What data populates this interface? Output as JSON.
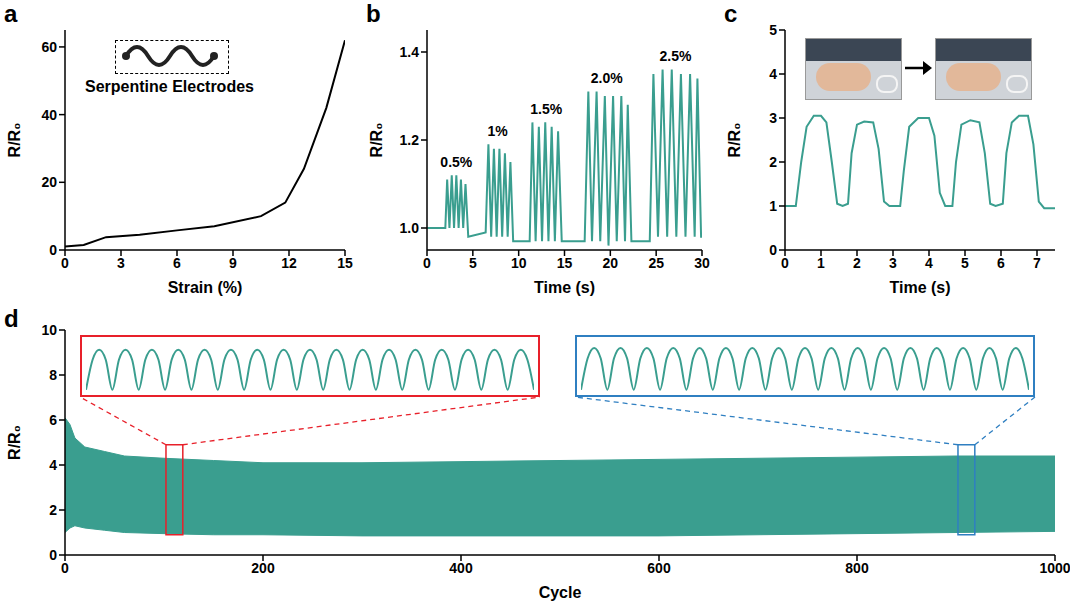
{
  "chart_data": [
    {
      "panel": "a",
      "type": "line",
      "x_label": "Strain (%)",
      "y_label": "R/R₀",
      "annotation": "Serpentine Electrodes",
      "color": "#000000",
      "x": [
        0,
        1,
        2.2,
        4,
        6,
        8,
        10.5,
        11.8,
        12.8,
        14,
        15
      ],
      "values": [
        1,
        1.5,
        3.8,
        4.5,
        5.8,
        7,
        10,
        14,
        24,
        42,
        62
      ],
      "xlim": [
        0,
        15
      ],
      "xticks": [
        0,
        3,
        6,
        9,
        12,
        15
      ],
      "ylim": [
        0,
        65
      ],
      "yticks": [
        0,
        20,
        40,
        60
      ]
    },
    {
      "panel": "b",
      "type": "line",
      "x_label": "Time (s)",
      "y_label": "R/R₀",
      "color": "#3a9e8f",
      "x": [
        0,
        2.0,
        2.2,
        2.45,
        2.7,
        2.95,
        3.2,
        3.45,
        3.7,
        3.95,
        4.2,
        4.5,
        6.4,
        6.7,
        7.0,
        7.3,
        7.6,
        7.9,
        8.2,
        8.5,
        8.8,
        9.1,
        9.4,
        11.2,
        11.5,
        11.85,
        12.2,
        12.55,
        12.9,
        13.25,
        13.6,
        13.95,
        14.3,
        14.7,
        17.2,
        17.6,
        18.0,
        18.5,
        18.9,
        19.4,
        19.8,
        20.3,
        20.7,
        21.2,
        21.6,
        21.9,
        22.3,
        24.3,
        24.7,
        25.2,
        25.7,
        26.2,
        26.7,
        27.2,
        27.7,
        28.2,
        28.7,
        29.2,
        29.5,
        29.9,
        30
      ],
      "values": [
        1.0,
        1.0,
        1.11,
        1.0,
        1.12,
        1.0,
        1.12,
        1.0,
        1.11,
        1.0,
        1.1,
        0.98,
        0.99,
        1.19,
        0.98,
        1.18,
        0.98,
        1.18,
        0.98,
        1.17,
        0.98,
        1.15,
        0.97,
        0.97,
        1.24,
        0.97,
        1.23,
        0.97,
        1.24,
        0.97,
        1.23,
        0.97,
        1.22,
        0.97,
        0.97,
        1.31,
        0.97,
        1.31,
        0.97,
        1.3,
        0.96,
        1.3,
        0.97,
        1.3,
        0.97,
        1.28,
        0.97,
        0.97,
        1.35,
        0.98,
        1.36,
        0.98,
        1.36,
        0.98,
        1.35,
        0.98,
        1.35,
        0.98,
        1.34,
        0.98,
        0.98
      ],
      "annotations": [
        {
          "text": "0.5%",
          "x": 3.2,
          "y": 1.15
        },
        {
          "text": "1%",
          "x": 7.7,
          "y": 1.22
        },
        {
          "text": "1.5%",
          "x": 13,
          "y": 1.27
        },
        {
          "text": "2.0%",
          "x": 19.6,
          "y": 1.34
        },
        {
          "text": "2.5%",
          "x": 27.1,
          "y": 1.39
        }
      ],
      "xlim": [
        0,
        30
      ],
      "xticks": [
        0,
        5,
        10,
        15,
        20,
        25,
        30
      ],
      "ylim": [
        0.95,
        1.45
      ],
      "yticks": [
        {
          "value": 1.0,
          "label": "1.0"
        },
        {
          "value": 1.2,
          "label": "1.2"
        },
        {
          "value": 1.4,
          "label": "1.4"
        }
      ]
    },
    {
      "panel": "c",
      "type": "line",
      "x_label": "Time (s)",
      "y_label": "R/R₀",
      "color": "#3a9e8f",
      "x": [
        0,
        0.3,
        0.45,
        0.6,
        0.8,
        1.0,
        1.15,
        1.3,
        1.45,
        1.6,
        1.75,
        1.85,
        2.0,
        2.2,
        2.45,
        2.6,
        2.75,
        2.9,
        3.2,
        3.3,
        3.45,
        3.7,
        4.0,
        4.15,
        4.3,
        4.45,
        4.65,
        4.75,
        4.9,
        5.15,
        5.4,
        5.55,
        5.7,
        5.85,
        6.05,
        6.15,
        6.3,
        6.5,
        6.75,
        6.9,
        7.05,
        7.2,
        7.5
      ],
      "values": [
        1.0,
        1.0,
        2.0,
        2.8,
        3.05,
        3.05,
        2.9,
        2.0,
        1.05,
        1.0,
        1.05,
        2.2,
        2.85,
        2.92,
        2.9,
        2.3,
        1.1,
        1.0,
        1.0,
        1.8,
        2.8,
        3.0,
        3.0,
        2.6,
        1.3,
        1.0,
        1.0,
        2.0,
        2.85,
        2.95,
        2.9,
        2.2,
        1.05,
        1.0,
        1.05,
        2.2,
        2.9,
        3.05,
        3.05,
        2.4,
        1.1,
        0.95,
        0.95
      ],
      "xlim": [
        0,
        7.5
      ],
      "xticks": [
        0,
        1,
        2,
        3,
        4,
        5,
        6,
        7
      ],
      "ylim": [
        0,
        5
      ],
      "yticks": [
        0,
        1,
        2,
        3,
        4,
        5
      ]
    },
    {
      "panel": "d",
      "type": "area",
      "x_label": "Cycle",
      "y_label": "R/R₀",
      "color": "#3a9e8f",
      "x": [
        0,
        5,
        10,
        20,
        40,
        60,
        100,
        150,
        200,
        300,
        400,
        500,
        600,
        700,
        800,
        900,
        1000
      ],
      "values": [
        [
          1.0,
          6.1
        ],
        [
          1.2,
          5.8
        ],
        [
          1.3,
          5.2
        ],
        [
          1.2,
          4.8
        ],
        [
          1.1,
          4.6
        ],
        [
          1.0,
          4.4
        ],
        [
          0.95,
          4.3
        ],
        [
          0.9,
          4.2
        ],
        [
          0.9,
          4.1
        ],
        [
          0.85,
          4.1
        ],
        [
          0.85,
          4.15
        ],
        [
          0.85,
          4.2
        ],
        [
          0.85,
          4.25
        ],
        [
          0.9,
          4.3
        ],
        [
          0.95,
          4.35
        ],
        [
          1.0,
          4.4
        ],
        [
          1.05,
          4.4
        ]
      ],
      "xlim": [
        0,
        1000
      ],
      "xticks": [
        0,
        200,
        400,
        600,
        800,
        1000
      ],
      "ylim": [
        0,
        10
      ],
      "yticks": [
        0,
        2,
        4,
        6,
        8,
        10
      ],
      "insets": [
        {
          "color": "#e8202a",
          "xlim": [
            102,
            119
          ],
          "ylim": [
            0.9,
            4.9
          ],
          "x": [
            102,
            102.25,
            102.5,
            102.75,
            103,
            103.25,
            103.5,
            103.75,
            104,
            104.25,
            104.5,
            104.75,
            105,
            105.25,
            105.5,
            105.75,
            106,
            106.25,
            106.5,
            106.75,
            107,
            107.25,
            107.5,
            107.75,
            108,
            108.25,
            108.5,
            108.75,
            109,
            109.25,
            109.5,
            109.75,
            110,
            110.25,
            110.5,
            110.75,
            111,
            111.25,
            111.5,
            111.75,
            112,
            112.25,
            112.5,
            112.75,
            113,
            113.25,
            113.5,
            113.75,
            114,
            114.25,
            114.5,
            114.75,
            115,
            115.25,
            115.5,
            115.75,
            116,
            116.25,
            116.5,
            116.75,
            117,
            117.25,
            117.5,
            117.75,
            118,
            118.25,
            118.5,
            118.75,
            119
          ],
          "values": [
            1.0,
            3.4,
            4.2,
            3.4,
            1.0,
            3.4,
            4.2,
            3.4,
            1.0,
            3.4,
            4.2,
            3.4,
            1.0,
            3.4,
            4.2,
            3.4,
            1.0,
            3.4,
            4.2,
            3.4,
            1.0,
            3.4,
            4.2,
            3.4,
            1.0,
            3.4,
            4.2,
            3.4,
            1.0,
            3.4,
            4.2,
            3.4,
            1.0,
            3.4,
            4.2,
            3.4,
            1.0,
            3.4,
            4.2,
            3.4,
            1.0,
            3.4,
            4.2,
            3.4,
            1.0,
            3.4,
            4.2,
            3.4,
            1.0,
            3.4,
            4.2,
            3.4,
            1.0,
            3.4,
            4.2,
            3.4,
            1.0,
            3.4,
            4.2,
            3.4,
            1.0,
            3.4,
            4.2,
            3.4,
            1.0,
            3.4,
            4.2,
            3.4,
            1.0
          ]
        },
        {
          "color": "#2f7fc1",
          "xlim": [
            902,
            919
          ],
          "ylim": [
            0.9,
            4.9
          ],
          "x": [
            902,
            902.25,
            902.5,
            902.75,
            903,
            903.25,
            903.5,
            903.75,
            904,
            904.25,
            904.5,
            904.75,
            905,
            905.25,
            905.5,
            905.75,
            906,
            906.25,
            906.5,
            906.75,
            907,
            907.25,
            907.5,
            907.75,
            908,
            908.25,
            908.5,
            908.75,
            909,
            909.25,
            909.5,
            909.75,
            910,
            910.25,
            910.5,
            910.75,
            911,
            911.25,
            911.5,
            911.75,
            912,
            912.25,
            912.5,
            912.75,
            913,
            913.25,
            913.5,
            913.75,
            914,
            914.25,
            914.5,
            914.75,
            915,
            915.25,
            915.5,
            915.75,
            916,
            916.25,
            916.5,
            916.75,
            917,
            917.25,
            917.5,
            917.75,
            918,
            918.25,
            918.5,
            918.75,
            919
          ],
          "values": [
            1.0,
            3.5,
            4.35,
            3.5,
            1.0,
            3.5,
            4.35,
            3.5,
            1.0,
            3.5,
            4.35,
            3.5,
            1.0,
            3.5,
            4.35,
            3.5,
            1.0,
            3.5,
            4.35,
            3.5,
            1.0,
            3.5,
            4.35,
            3.5,
            1.0,
            3.5,
            4.35,
            3.5,
            1.0,
            3.5,
            4.35,
            3.5,
            1.0,
            3.5,
            4.35,
            3.5,
            1.0,
            3.5,
            4.35,
            3.5,
            1.0,
            3.5,
            4.35,
            3.5,
            1.0,
            3.5,
            4.35,
            3.5,
            1.0,
            3.5,
            4.35,
            3.5,
            1.0,
            3.5,
            4.35,
            3.5,
            1.0,
            3.5,
            4.35,
            3.5,
            1.0,
            3.5,
            4.35,
            3.5,
            1.0,
            3.5,
            4.35,
            3.5,
            1.0
          ]
        }
      ]
    }
  ]
}
